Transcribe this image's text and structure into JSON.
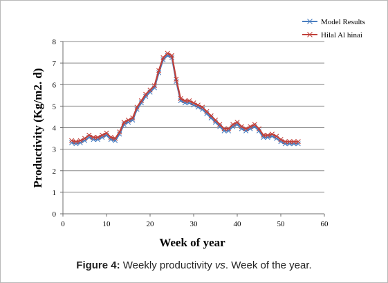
{
  "caption": {
    "prefix": "Figure 4:",
    "part1": " Weekly productivity ",
    "vs": "vs",
    "part2": ". Week of the year."
  },
  "chart_data": {
    "type": "line",
    "title": "",
    "xlabel": "Week of year",
    "ylabel": "Productivity  (Kg/m2. d)",
    "xlim": [
      0,
      60
    ],
    "ylim": [
      0,
      8
    ],
    "xticks": [
      0,
      10,
      20,
      30,
      40,
      50,
      60
    ],
    "yticks": [
      0,
      1,
      2,
      3,
      4,
      5,
      6,
      7,
      8
    ],
    "grid": "horizontal",
    "legend_position": "top-right",
    "series": [
      {
        "name": "Model Results",
        "color": "#4a7ec0",
        "marker": "x",
        "x": [
          2,
          3,
          4,
          5,
          6,
          7,
          8,
          9,
          10,
          11,
          12,
          13,
          14,
          15,
          16,
          17,
          18,
          19,
          20,
          21,
          22,
          23,
          24,
          25,
          26,
          27,
          28,
          29,
          30,
          31,
          32,
          33,
          34,
          35,
          36,
          37,
          38,
          39,
          40,
          41,
          42,
          43,
          44,
          45,
          46,
          47,
          48,
          49,
          50,
          51,
          52,
          53,
          54
        ],
        "y": [
          3.3,
          3.25,
          3.3,
          3.4,
          3.55,
          3.45,
          3.45,
          3.55,
          3.65,
          3.45,
          3.4,
          3.7,
          4.15,
          4.25,
          4.35,
          4.85,
          5.15,
          5.45,
          5.65,
          5.85,
          6.55,
          7.15,
          7.35,
          7.25,
          6.15,
          5.25,
          5.15,
          5.15,
          5.05,
          4.95,
          4.85,
          4.65,
          4.45,
          4.25,
          4.05,
          3.85,
          3.85,
          4.05,
          4.15,
          3.95,
          3.85,
          3.95,
          4.05,
          3.85,
          3.55,
          3.55,
          3.6,
          3.5,
          3.35,
          3.25,
          3.25,
          3.25,
          3.25
        ]
      },
      {
        "name": "Hilal Al hinai",
        "color": "#c0403a",
        "marker": "x",
        "x": [
          2,
          3,
          4,
          5,
          6,
          7,
          8,
          9,
          10,
          11,
          12,
          13,
          14,
          15,
          16,
          17,
          18,
          19,
          20,
          21,
          22,
          23,
          24,
          25,
          26,
          27,
          28,
          29,
          30,
          31,
          32,
          33,
          34,
          35,
          36,
          37,
          38,
          39,
          40,
          41,
          42,
          43,
          44,
          45,
          46,
          47,
          48,
          49,
          50,
          51,
          52,
          53,
          54
        ],
        "y": [
          3.4,
          3.35,
          3.4,
          3.5,
          3.65,
          3.55,
          3.55,
          3.65,
          3.75,
          3.55,
          3.5,
          3.8,
          4.25,
          4.35,
          4.45,
          4.95,
          5.25,
          5.55,
          5.75,
          5.95,
          6.65,
          7.25,
          7.45,
          7.35,
          6.25,
          5.35,
          5.25,
          5.25,
          5.15,
          5.05,
          4.95,
          4.75,
          4.55,
          4.35,
          4.15,
          3.95,
          3.95,
          4.15,
          4.25,
          4.05,
          3.95,
          4.05,
          4.15,
          3.95,
          3.65,
          3.65,
          3.7,
          3.6,
          3.45,
          3.35,
          3.35,
          3.35,
          3.35
        ]
      }
    ]
  }
}
